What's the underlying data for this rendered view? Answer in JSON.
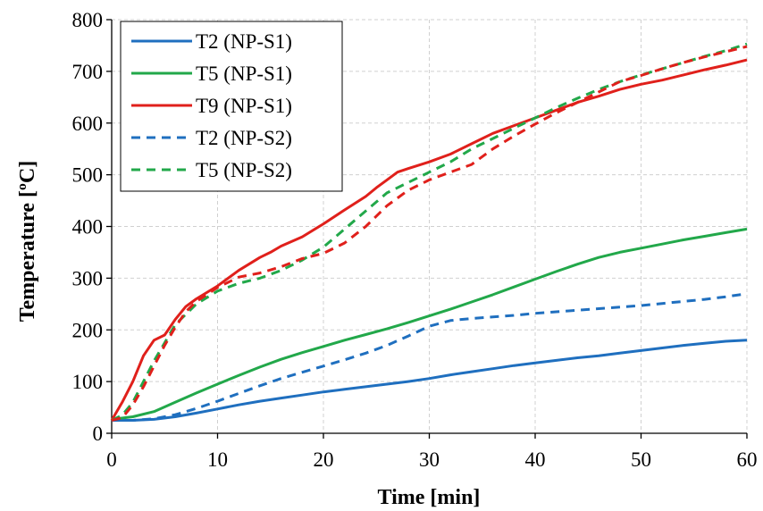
{
  "chart_data": {
    "type": "line",
    "title": "",
    "xlabel": "Time [min]",
    "ylabel": "Temperature [ºC]",
    "xlim": [
      0,
      60
    ],
    "ylim": [
      0,
      800
    ],
    "xticks": [
      0,
      10,
      20,
      30,
      40,
      50,
      60
    ],
    "yticks": [
      0,
      100,
      200,
      300,
      400,
      500,
      600,
      700,
      800
    ],
    "grid": true,
    "legend_position": "top-left",
    "series": [
      {
        "name": "T2 (NP-S1)",
        "color": "#1f6fbf",
        "dash": "solid",
        "x": [
          0,
          2,
          4,
          6,
          8,
          10,
          12,
          14,
          16,
          18,
          20,
          22,
          24,
          26,
          28,
          30,
          32,
          34,
          36,
          38,
          40,
          42,
          44,
          46,
          48,
          50,
          52,
          54,
          56,
          58,
          60
        ],
        "y": [
          25,
          25,
          27,
          32,
          39,
          47,
          55,
          62,
          68,
          74,
          80,
          85,
          90,
          95,
          100,
          106,
          113,
          119,
          125,
          131,
          136,
          141,
          146,
          150,
          155,
          160,
          165,
          170,
          174,
          178,
          180
        ]
      },
      {
        "name": "T5 (NP-S1)",
        "color": "#22a84a",
        "dash": "solid",
        "x": [
          0,
          2,
          4,
          6,
          8,
          10,
          12,
          14,
          16,
          18,
          20,
          22,
          24,
          26,
          28,
          30,
          32,
          34,
          36,
          38,
          40,
          42,
          44,
          46,
          48,
          50,
          52,
          54,
          56,
          58,
          60
        ],
        "y": [
          27,
          32,
          42,
          60,
          78,
          95,
          112,
          128,
          143,
          156,
          168,
          180,
          191,
          202,
          214,
          227,
          240,
          254,
          268,
          283,
          298,
          313,
          327,
          340,
          350,
          358,
          366,
          374,
          381,
          388,
          395
        ]
      },
      {
        "name": "T9 (NP-S1)",
        "color": "#e0201b",
        "dash": "solid",
        "x": [
          0,
          1,
          2,
          3,
          4,
          5,
          6,
          7,
          8,
          10,
          12,
          14,
          15,
          16,
          18,
          20,
          22,
          24,
          25,
          26,
          27,
          28,
          30,
          32,
          34,
          36,
          38,
          40,
          42,
          44,
          46,
          48,
          50,
          52,
          54,
          56,
          58,
          60
        ],
        "y": [
          25,
          60,
          100,
          150,
          180,
          190,
          220,
          245,
          260,
          285,
          315,
          340,
          350,
          362,
          380,
          405,
          432,
          458,
          475,
          490,
          505,
          512,
          525,
          540,
          560,
          580,
          595,
          610,
          625,
          640,
          652,
          665,
          675,
          683,
          693,
          703,
          712,
          722
        ]
      },
      {
        "name": "T2 (NP-S2)",
        "color": "#1f6fbf",
        "dash": "dashed",
        "x": [
          0,
          2,
          4,
          6,
          8,
          10,
          12,
          14,
          16,
          18,
          20,
          22,
          24,
          26,
          28,
          30,
          32,
          34,
          36,
          38,
          40,
          42,
          44,
          46,
          48,
          50,
          52,
          54,
          56,
          58,
          60
        ],
        "y": [
          25,
          25,
          28,
          36,
          48,
          62,
          77,
          92,
          106,
          118,
          130,
          142,
          155,
          170,
          188,
          207,
          218,
          222,
          225,
          228,
          232,
          235,
          238,
          241,
          244,
          247,
          251,
          255,
          259,
          264,
          270
        ]
      },
      {
        "name": "T5 (NP-S2)",
        "color": "#22a84a",
        "dash": "dashed",
        "x": [
          0,
          1,
          2,
          3,
          4,
          5,
          6,
          8,
          10,
          12,
          14,
          16,
          18,
          20,
          22,
          24,
          26,
          28,
          30,
          32,
          34,
          36,
          38,
          40,
          42,
          44,
          46,
          48,
          50,
          52,
          54,
          56,
          58,
          60
        ],
        "y": [
          25,
          35,
          60,
          100,
          140,
          175,
          210,
          250,
          275,
          290,
          300,
          315,
          335,
          360,
          395,
          430,
          465,
          485,
          505,
          525,
          550,
          570,
          590,
          610,
          630,
          648,
          665,
          680,
          693,
          705,
          717,
          729,
          740,
          753
        ]
      },
      {
        "name": "",
        "color": "#e0201b",
        "dash": "dashed",
        "x": [
          0,
          1,
          2,
          3,
          4,
          5,
          6,
          7,
          8,
          10,
          12,
          14,
          16,
          18,
          20,
          22,
          24,
          26,
          28,
          30,
          32,
          34,
          36,
          38,
          40,
          42,
          44,
          46,
          48,
          50,
          52,
          54,
          56,
          58,
          60
        ],
        "y": [
          25,
          30,
          55,
          90,
          130,
          170,
          205,
          235,
          255,
          282,
          302,
          310,
          322,
          338,
          348,
          368,
          400,
          440,
          470,
          490,
          505,
          520,
          550,
          575,
          598,
          620,
          640,
          660,
          680,
          692,
          705,
          717,
          728,
          738,
          748
        ]
      }
    ]
  }
}
